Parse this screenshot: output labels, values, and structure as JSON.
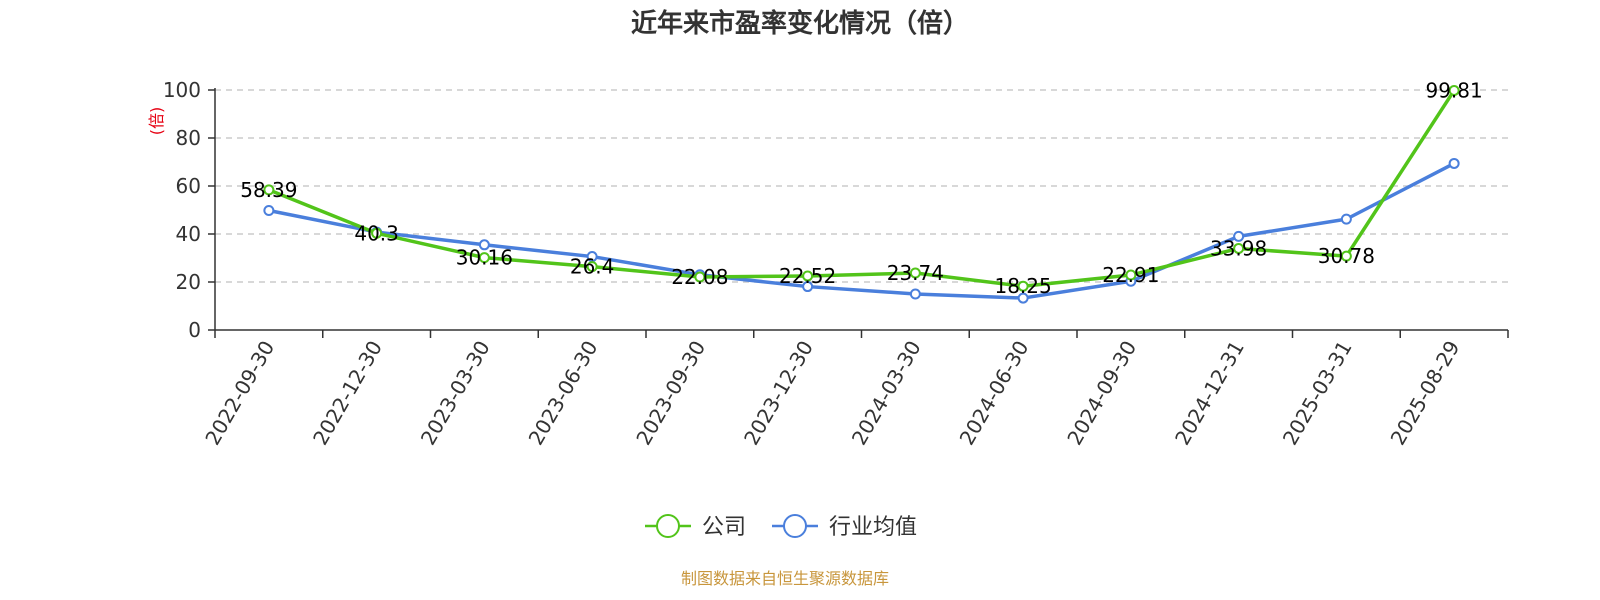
{
  "chart_data": {
    "type": "line",
    "title": "近年来市盈率变化情况（倍）",
    "ylabel": "(倍)",
    "xlabel": "",
    "categories": [
      "2022-09-30",
      "2022-12-30",
      "2023-03-30",
      "2023-06-30",
      "2023-09-30",
      "2023-12-30",
      "2024-03-30",
      "2024-06-30",
      "2024-09-30",
      "2024-12-31",
      "2025-03-31",
      "2025-08-29"
    ],
    "ylim": [
      0,
      100
    ],
    "yticks": [
      0,
      20,
      40,
      60,
      80,
      100
    ],
    "grid": true,
    "legend_position": "bottom",
    "series": [
      {
        "name": "公司",
        "color": "#52c41a",
        "values": [
          58.39,
          40.3,
          30.16,
          26.4,
          22.08,
          22.52,
          23.74,
          18.25,
          22.91,
          33.98,
          30.78,
          99.81
        ],
        "labels": [
          "58.39",
          "40.3",
          "30.16",
          "26.4",
          "22.08",
          "22.52",
          "23.74",
          "18.25",
          "22.91",
          "33.98",
          "30.78",
          "99.81"
        ]
      },
      {
        "name": "行业均值",
        "color": "#4a7fdc",
        "values": [
          49.8,
          40.8,
          35.5,
          30.6,
          23.0,
          18.1,
          15.0,
          13.3,
          20.3,
          39.0,
          46.2,
          69.4
        ]
      }
    ]
  },
  "footer": {
    "source": "制图数据来自恒生聚源数据库"
  }
}
